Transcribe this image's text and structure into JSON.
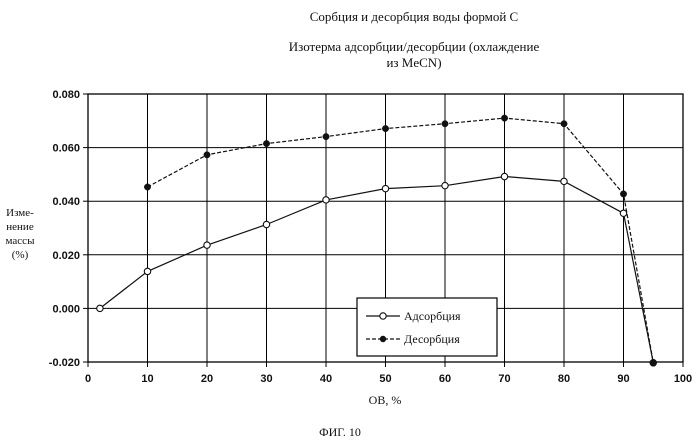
{
  "title": "Сорбция и десорбция воды формой С",
  "subtitle_line1": "Изотерма адсорбции/десорбции (охлаждение",
  "subtitle_line2": "из MeCN)",
  "figure_caption": "ФИГ. 10",
  "chart_data": {
    "type": "line",
    "xlabel": "ОВ, %",
    "ylabel_lines": [
      "Изме-",
      "нение",
      "массы",
      "(%)"
    ],
    "xlim": [
      0,
      100
    ],
    "ylim": [
      -0.02,
      0.08
    ],
    "x_ticks": [
      0,
      10,
      20,
      30,
      40,
      50,
      60,
      70,
      80,
      90,
      100
    ],
    "y_ticks": [
      -0.02,
      0.0,
      0.02,
      0.04,
      0.06,
      0.08
    ],
    "y_tick_labels": [
      "-0.020",
      "0.000",
      "0.020",
      "0.040",
      "0.060",
      "0.080"
    ],
    "grid": true,
    "legend_position": "bottom-center",
    "series": [
      {
        "name": "Адсорбция",
        "marker": "open-circle",
        "line_style": "solid",
        "x": [
          2,
          10,
          20,
          30,
          40,
          50,
          60,
          70,
          80,
          90,
          95
        ],
        "y": [
          0.0,
          0.0138,
          0.0236,
          0.0313,
          0.0405,
          0.0447,
          0.0458,
          0.0492,
          0.0474,
          0.0355,
          -0.0203
        ]
      },
      {
        "name": "Десорбция",
        "marker": "filled-circle",
        "line_style": "dashed",
        "x": [
          10,
          20,
          30,
          40,
          50,
          60,
          70,
          80,
          90,
          95
        ],
        "y": [
          0.0453,
          0.0573,
          0.0615,
          0.0641,
          0.0671,
          0.0689,
          0.071,
          0.0689,
          0.0427,
          -0.0203
        ]
      }
    ]
  }
}
